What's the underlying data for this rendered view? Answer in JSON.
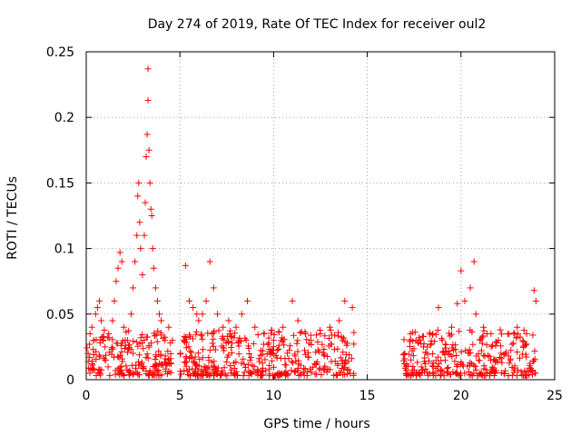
{
  "chart_data": {
    "type": "scatter",
    "title": "Day 274 of 2019, Rate Of TEC Index for receiver oul2",
    "xlabel": "GPS time / hours",
    "ylabel": "ROTI / TECUs",
    "xlim": [
      0,
      25
    ],
    "ylim": [
      0,
      0.25
    ],
    "xticks": [
      0,
      5,
      10,
      15,
      20,
      25
    ],
    "xtick_labels": [
      "0",
      "5",
      "10",
      "15",
      "20",
      "25"
    ],
    "yticks": [
      0,
      0.05,
      0.1,
      0.15,
      0.2,
      0.25
    ],
    "ytick_labels": [
      "0",
      "0.05",
      "0.1",
      "0.15",
      "0.2",
      "0.25"
    ],
    "grid": true,
    "marker": "+",
    "color": "#ff0000",
    "series": [
      {
        "name": "ROTI",
        "points": [
          [
            0.1,
            0.02
          ],
          [
            0.2,
            0.035
          ],
          [
            0.3,
            0.04
          ],
          [
            0.4,
            0.03
          ],
          [
            0.5,
            0.05
          ],
          [
            0.6,
            0.055
          ],
          [
            0.7,
            0.06
          ],
          [
            0.8,
            0.045
          ],
          [
            0.9,
            0.03
          ],
          [
            1.0,
            0.025
          ],
          [
            1.2,
            0.035
          ],
          [
            1.4,
            0.045
          ],
          [
            1.5,
            0.06
          ],
          [
            1.6,
            0.075
          ],
          [
            1.7,
            0.085
          ],
          [
            1.8,
            0.097
          ],
          [
            1.9,
            0.09
          ],
          [
            2.0,
            0.04
          ],
          [
            2.2,
            0.03
          ],
          [
            2.4,
            0.05
          ],
          [
            2.5,
            0.07
          ],
          [
            2.6,
            0.09
          ],
          [
            2.7,
            0.11
          ],
          [
            2.75,
            0.14
          ],
          [
            2.8,
            0.15
          ],
          [
            2.85,
            0.12
          ],
          [
            2.9,
            0.1
          ],
          [
            3.0,
            0.08
          ],
          [
            3.1,
            0.11
          ],
          [
            3.15,
            0.135
          ],
          [
            3.2,
            0.17
          ],
          [
            3.25,
            0.187
          ],
          [
            3.3,
            0.213
          ],
          [
            3.3,
            0.237
          ],
          [
            3.35,
            0.175
          ],
          [
            3.4,
            0.15
          ],
          [
            3.45,
            0.13
          ],
          [
            3.5,
            0.125
          ],
          [
            3.55,
            0.1
          ],
          [
            3.6,
            0.085
          ],
          [
            3.7,
            0.07
          ],
          [
            3.8,
            0.06
          ],
          [
            3.9,
            0.05
          ],
          [
            4.0,
            0.045
          ],
          [
            4.2,
            0.03
          ],
          [
            4.4,
            0.04
          ],
          [
            4.6,
            0.03
          ],
          [
            5.2,
            0.03
          ],
          [
            5.3,
            0.087
          ],
          [
            5.5,
            0.06
          ],
          [
            5.7,
            0.055
          ],
          [
            5.9,
            0.05
          ],
          [
            6.0,
            0.045
          ],
          [
            6.2,
            0.05
          ],
          [
            6.4,
            0.06
          ],
          [
            6.6,
            0.09
          ],
          [
            6.8,
            0.07
          ],
          [
            7.0,
            0.05
          ],
          [
            7.3,
            0.04
          ],
          [
            7.6,
            0.045
          ],
          [
            8.0,
            0.04
          ],
          [
            8.3,
            0.05
          ],
          [
            8.6,
            0.06
          ],
          [
            9.0,
            0.04
          ],
          [
            9.5,
            0.035
          ],
          [
            10.0,
            0.03
          ],
          [
            10.5,
            0.04
          ],
          [
            11.0,
            0.06
          ],
          [
            11.3,
            0.045
          ],
          [
            11.7,
            0.035
          ],
          [
            12.0,
            0.03
          ],
          [
            12.5,
            0.035
          ],
          [
            13.0,
            0.04
          ],
          [
            13.5,
            0.045
          ],
          [
            13.8,
            0.06
          ],
          [
            14.2,
            0.055
          ],
          [
            17.0,
            0.02
          ],
          [
            17.3,
            0.035
          ],
          [
            17.6,
            0.03
          ],
          [
            18.0,
            0.025
          ],
          [
            18.5,
            0.035
          ],
          [
            18.8,
            0.055
          ],
          [
            19.0,
            0.03
          ],
          [
            19.5,
            0.04
          ],
          [
            19.8,
            0.058
          ],
          [
            20.0,
            0.083
          ],
          [
            20.2,
            0.06
          ],
          [
            20.5,
            0.07
          ],
          [
            20.7,
            0.09
          ],
          [
            20.8,
            0.05
          ],
          [
            21.2,
            0.04
          ],
          [
            21.6,
            0.035
          ],
          [
            22.0,
            0.03
          ],
          [
            22.5,
            0.035
          ],
          [
            23.0,
            0.04
          ],
          [
            23.5,
            0.035
          ],
          [
            23.9,
            0.068
          ],
          [
            24.0,
            0.06
          ]
        ]
      }
    ]
  }
}
